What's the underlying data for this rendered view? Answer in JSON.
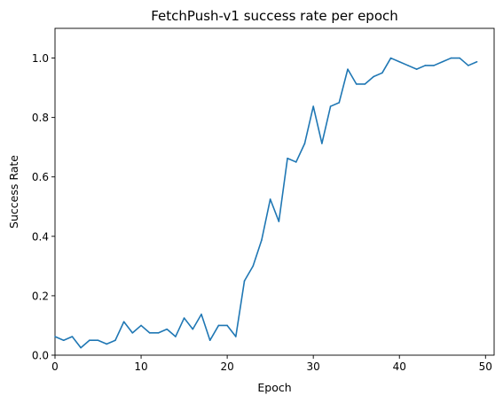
{
  "chart_data": {
    "type": "line",
    "title": "FetchPush-v1 success rate per epoch",
    "xlabel": "Epoch",
    "ylabel": "Success Rate",
    "xlim": [
      0,
      51
    ],
    "ylim": [
      0.0,
      1.1
    ],
    "xticks": [
      0,
      10,
      20,
      30,
      40,
      50
    ],
    "xtick_labels": [
      "0",
      "10",
      "20",
      "30",
      "40",
      "50"
    ],
    "yticks": [
      0.0,
      0.2,
      0.4,
      0.6,
      0.8,
      1.0
    ],
    "ytick_labels": [
      "0.0",
      "0.2",
      "0.4",
      "0.6",
      "0.8",
      "1.0"
    ],
    "grid": false,
    "series": [
      {
        "color": "#1f77b4",
        "x": [
          0,
          1,
          2,
          3,
          4,
          5,
          6,
          7,
          8,
          9,
          10,
          11,
          12,
          13,
          14,
          15,
          16,
          17,
          18,
          19,
          20,
          21,
          22,
          23,
          24,
          25,
          26,
          27,
          28,
          29,
          30,
          31,
          32,
          33,
          34,
          35,
          36,
          37,
          38,
          39,
          40,
          41,
          42,
          43,
          44,
          45,
          46,
          47,
          48,
          49
        ],
        "values": [
          0.0625,
          0.05,
          0.0625,
          0.025,
          0.05,
          0.05,
          0.0375,
          0.05,
          0.1125,
          0.075,
          0.1,
          0.075,
          0.075,
          0.0875,
          0.0625,
          0.125,
          0.0875,
          0.1375,
          0.05,
          0.1,
          0.1,
          0.0625,
          0.25,
          0.3,
          0.3875,
          0.525,
          0.45,
          0.6625,
          0.65,
          0.7125,
          0.8375,
          0.7125,
          0.8375,
          0.85,
          0.9625,
          0.9125,
          0.9125,
          0.9375,
          0.95,
          1.0,
          0.9875,
          0.975,
          0.9625,
          0.975,
          0.975,
          0.9875,
          1.0,
          1.0,
          0.975,
          0.9875
        ]
      }
    ]
  }
}
